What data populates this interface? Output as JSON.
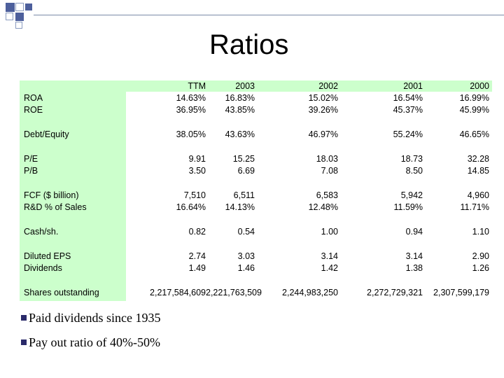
{
  "slide": {
    "title": "Ratios",
    "accent_color": "#4d5f9c",
    "table_bg_color": "#ccffcc"
  },
  "table": {
    "headers": [
      "TTM",
      "2003",
      "2002",
      "2001",
      "2000"
    ],
    "rows": [
      {
        "label": "ROA",
        "values": [
          "14.63%",
          "16.83%",
          "15.02%",
          "16.54%",
          "16.99%"
        ]
      },
      {
        "label": "ROE",
        "values": [
          "36.95%",
          "43.85%",
          "39.26%",
          "45.37%",
          "45.99%"
        ]
      },
      {
        "label": "Debt/Equity",
        "values": [
          "38.05%",
          "43.63%",
          "46.97%",
          "55.24%",
          "46.65%"
        ]
      },
      {
        "label": "P/E",
        "values": [
          "9.91",
          "15.25",
          "18.03",
          "18.73",
          "32.28"
        ]
      },
      {
        "label": "P/B",
        "values": [
          "3.50",
          "6.69",
          "7.08",
          "8.50",
          "14.85"
        ]
      },
      {
        "label": "FCF ($ billion)",
        "values": [
          "7,510",
          "6,511",
          "6,583",
          "5,942",
          "4,960"
        ]
      },
      {
        "label": "R&D % of Sales",
        "values": [
          "16.64%",
          "14.13%",
          "12.48%",
          "11.59%",
          "11.71%"
        ]
      },
      {
        "label": "Cash/sh.",
        "values": [
          "0.82",
          "0.54",
          "1.00",
          "0.94",
          "1.10"
        ]
      },
      {
        "label": "Diluted EPS",
        "values": [
          "2.74",
          "3.03",
          "3.14",
          "3.14",
          "2.90"
        ]
      },
      {
        "label": "Dividends",
        "values": [
          "1.49",
          "1.46",
          "1.42",
          "1.38",
          "1.26"
        ]
      },
      {
        "label": "Shares outstanding",
        "values": [
          "2,217,584,609",
          "2,221,763,509",
          "2,244,983,250",
          "2,272,729,321",
          "2,307,599,179"
        ]
      }
    ]
  },
  "bullets": [
    "Paid dividends since 1935",
    "Pay out ratio of 40%-50%"
  ]
}
